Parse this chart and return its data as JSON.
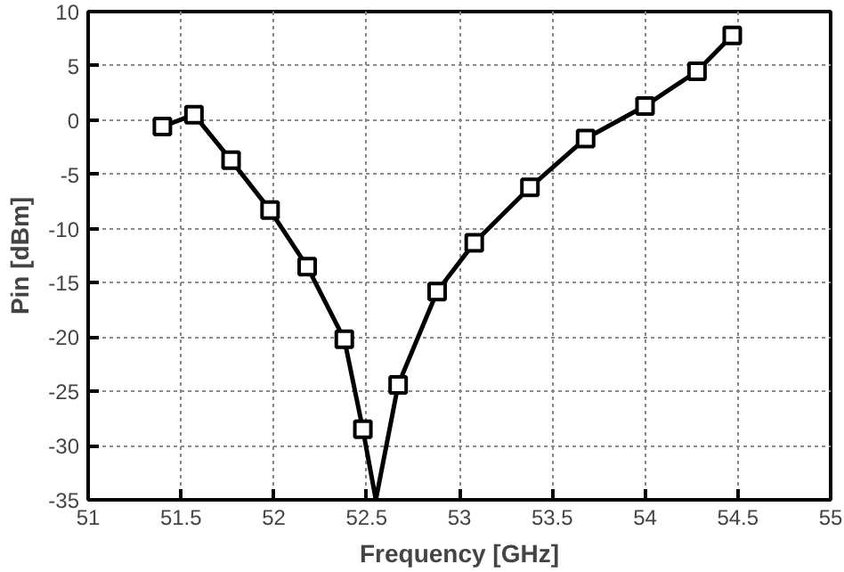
{
  "chart_data": {
    "type": "line",
    "xlabel": "Frequency [GHz]",
    "ylabel": "Pin [dBm]",
    "xlim": [
      51,
      55
    ],
    "xticks": [
      51,
      51.5,
      52,
      52.5,
      53,
      53.5,
      54,
      54.5,
      55
    ],
    "ylim": [
      -35,
      10
    ],
    "yticks": [
      -35,
      -30,
      -25,
      -20,
      -15,
      -10,
      -5,
      0,
      5,
      10
    ],
    "grid": true,
    "line_style": "solid",
    "series": [
      {
        "marker": "none",
        "color": "#000000",
        "x": [
          51.4,
          51.57,
          51.77,
          51.98,
          52.18,
          52.38,
          52.48,
          52.55,
          52.67,
          52.88,
          53.08,
          53.38,
          53.68,
          54.0,
          54.28,
          54.47
        ],
        "values": [
          -0.6,
          0.5,
          -3.7,
          -8.3,
          -13.5,
          -20.2,
          -28.5,
          -35,
          -24.4,
          -15.8,
          -11.3,
          -6.2,
          -1.7,
          1.3,
          4.5,
          7.8
        ]
      },
      {
        "type": "scatter",
        "marker": "square",
        "color": "#000000",
        "x": [
          51.4,
          51.57,
          51.77,
          51.98,
          52.18,
          52.38,
          52.48,
          52.67,
          52.88,
          53.08,
          53.38,
          53.68,
          54.0,
          54.28,
          54.47
        ],
        "values": [
          -0.6,
          0.5,
          -3.7,
          -8.3,
          -13.5,
          -20.2,
          -28.5,
          -24.4,
          -15.8,
          -11.3,
          -6.2,
          -1.7,
          1.3,
          4.5,
          7.8
        ]
      }
    ]
  }
}
